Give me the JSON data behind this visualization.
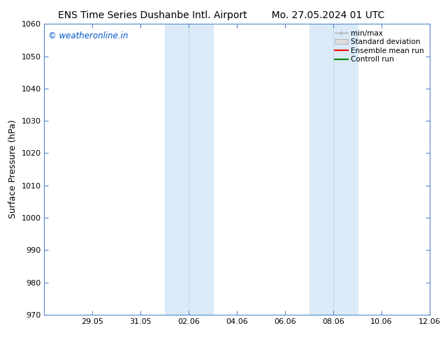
{
  "title_left": "ENS Time Series Dushanbe Intl. Airport",
  "title_right": "Mo. 27.05.2024 01 UTC",
  "ylabel": "Surface Pressure (hPa)",
  "ylim": [
    970,
    1060
  ],
  "yticks": [
    970,
    980,
    990,
    1000,
    1010,
    1020,
    1030,
    1040,
    1050,
    1060
  ],
  "xtick_labels": [
    "29.05",
    "31.05",
    "02.06",
    "04.06",
    "06.06",
    "08.06",
    "10.06",
    "12.06"
  ],
  "xtick_positions": [
    2,
    4,
    6,
    8,
    10,
    12,
    14,
    16
  ],
  "xlim": [
    0,
    16
  ],
  "shaded_bands": [
    {
      "x_start": 5.0,
      "x_end": 5.5,
      "color": "#daeaf7"
    },
    {
      "x_start": 5.5,
      "x_end": 7.0,
      "color": "#daeaf7"
    },
    {
      "x_start": 11.0,
      "x_end": 11.5,
      "color": "#daeaf7"
    },
    {
      "x_start": 11.5,
      "x_end": 13.0,
      "color": "#daeaf7"
    }
  ],
  "shaded_color": "#daeaf7",
  "shaded_border_color": "#b8d4ec",
  "legend_labels": [
    "min/max",
    "Standard deviation",
    "Ensemble mean run",
    "Controll run"
  ],
  "minmax_color": "#aaaaaa",
  "std_facecolor": "#dddddd",
  "std_edgecolor": "#aaaaaa",
  "mean_color": "#ff0000",
  "control_color": "#008000",
  "watermark": "© weatheronline.in",
  "watermark_color": "#0055cc",
  "spine_color": "#5588cc",
  "tick_color": "#5588cc",
  "background_color": "#ffffff",
  "title_fontsize": 10,
  "tick_fontsize": 8,
  "ylabel_fontsize": 9,
  "legend_fontsize": 7.5
}
